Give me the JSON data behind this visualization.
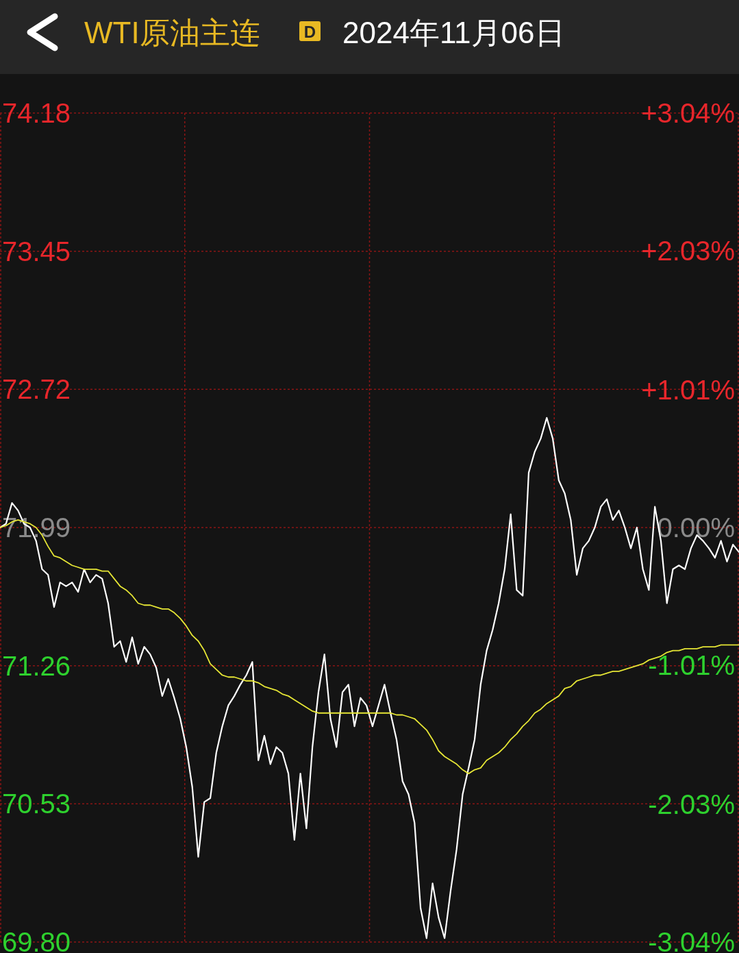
{
  "chart_data": {
    "type": "line",
    "title": "WTI原油主连",
    "subtitle": "2024年11月06日",
    "annotations": [
      "D"
    ],
    "categories": [
      null,
      null,
      null,
      null,
      null,
      null,
      null,
      null,
      null,
      null,
      null,
      null,
      null,
      null,
      null,
      null,
      null,
      null,
      null,
      null,
      null,
      null,
      null,
      null,
      null,
      null,
      null,
      null,
      null,
      null,
      null,
      null,
      null,
      null,
      null,
      null,
      null,
      null,
      null,
      null,
      null,
      null,
      null,
      null,
      null,
      null,
      null,
      null,
      null,
      null,
      null,
      null,
      null,
      null,
      null,
      null,
      null,
      null,
      null,
      null,
      null,
      null,
      null,
      null,
      null,
      null,
      null,
      null,
      null,
      null,
      null,
      null,
      null,
      null,
      null,
      null,
      null,
      null,
      null,
      null,
      null,
      null,
      null,
      null,
      null,
      null,
      null,
      null,
      null,
      null,
      null,
      null,
      null,
      null,
      null,
      null,
      null,
      null,
      null,
      null,
      null,
      null,
      null,
      null,
      null,
      null,
      null,
      null,
      null,
      null,
      null,
      null,
      null,
      null,
      null,
      null,
      null,
      null,
      null,
      null,
      null,
      null,
      null,
      null
    ],
    "ylim": [
      69.8,
      74.18
    ],
    "yticks": [
      {
        "value": 69.8,
        "label": "69.80"
      },
      70.53,
      71.26,
      71.99,
      72.72,
      73.45,
      74.18
    ],
    "y2lim": [
      -3.04,
      3.04
    ],
    "y2ticks": [
      {
        "value": -3.04,
        "label": "-3.04%"
      },
      {
        "value": -2.03,
        "label": "-2.03%"
      },
      {
        "value": -1.01,
        "label": "-1.01%"
      },
      {
        "value": 0,
        "label": "0.00%"
      },
      {
        "value": 1.01,
        "label": "+1.01%"
      },
      {
        "value": 2.03,
        "label": "+2.03%"
      },
      {
        "value": 3.04,
        "label": "+3.04%"
      }
    ],
    "grid": true,
    "line_style": "solid",
    "series": [
      {
        "color": "#ffffff",
        "values": [
          71.99,
          72.01,
          72.12,
          72.08,
          72.01,
          71.99,
          71.92,
          71.77,
          71.74,
          71.57,
          71.7,
          71.68,
          71.7,
          71.65,
          71.77,
          71.7,
          71.74,
          71.72,
          71.59,
          71.36,
          71.39,
          71.28,
          71.41,
          71.27,
          71.36,
          71.32,
          71.25,
          71.1,
          71.19,
          71.09,
          70.98,
          70.83,
          70.62,
          70.25,
          70.54,
          70.56,
          70.8,
          70.94,
          71.05,
          71.1,
          71.16,
          71.21,
          71.28,
          70.76,
          70.89,
          70.74,
          70.83,
          70.8,
          70.69,
          70.34,
          70.69,
          70.4,
          70.83,
          71.12,
          71.32,
          70.98,
          70.83,
          71.12,
          71.16,
          70.94,
          71.09,
          71.05,
          70.94,
          71.05,
          71.16,
          71.01,
          70.87,
          70.65,
          70.58,
          70.43,
          69.98,
          69.82,
          70.11,
          69.93,
          69.82,
          70.07,
          70.29,
          70.58,
          70.72,
          70.87,
          71.16,
          71.34,
          71.45,
          71.59,
          71.77,
          72.06,
          71.66,
          71.63,
          72.28,
          72.39,
          72.46,
          72.57,
          72.46,
          72.24,
          72.17,
          72.03,
          71.74,
          71.88,
          71.92,
          71.99,
          72.1,
          72.14,
          72.03,
          72.08,
          71.99,
          71.88,
          71.99,
          71.77,
          71.66,
          72.1,
          71.92,
          71.59,
          71.77,
          71.79,
          71.77,
          71.88,
          71.95,
          71.92,
          71.88,
          71.83,
          71.92,
          71.81,
          71.9,
          71.86
        ]
      },
      {
        "color": "#e6e635",
        "values": [
          71.99,
          72.0,
          72.02,
          72.03,
          72.02,
          72.01,
          71.99,
          71.95,
          71.89,
          71.84,
          71.83,
          71.81,
          71.79,
          71.78,
          71.77,
          71.77,
          71.77,
          71.76,
          71.76,
          71.72,
          71.68,
          71.66,
          71.63,
          71.59,
          71.58,
          71.58,
          71.57,
          71.56,
          71.56,
          71.54,
          71.51,
          71.47,
          71.42,
          71.39,
          71.34,
          71.27,
          71.24,
          71.21,
          71.2,
          71.2,
          71.19,
          71.18,
          71.18,
          71.17,
          71.15,
          71.14,
          71.13,
          71.11,
          71.1,
          71.08,
          71.06,
          71.04,
          71.02,
          71.01,
          71.01,
          71.01,
          71.01,
          71.01,
          71.01,
          71.01,
          71.01,
          71.01,
          71.01,
          71.01,
          71.01,
          71.01,
          71.0,
          71.0,
          70.99,
          70.98,
          70.95,
          70.92,
          70.87,
          70.81,
          70.78,
          70.76,
          70.74,
          70.71,
          70.69,
          70.71,
          70.72,
          70.76,
          70.78,
          70.8,
          70.83,
          70.87,
          70.9,
          70.94,
          70.97,
          71.01,
          71.03,
          71.06,
          71.08,
          71.1,
          71.14,
          71.15,
          71.18,
          71.19,
          71.2,
          71.21,
          71.21,
          71.22,
          71.23,
          71.23,
          71.24,
          71.25,
          71.26,
          71.27,
          71.29,
          71.3,
          71.31,
          71.33,
          71.34,
          71.34,
          71.35,
          71.35,
          71.35,
          71.36,
          71.36,
          71.36,
          71.37,
          71.37,
          71.37,
          71.37
        ]
      }
    ]
  }
}
